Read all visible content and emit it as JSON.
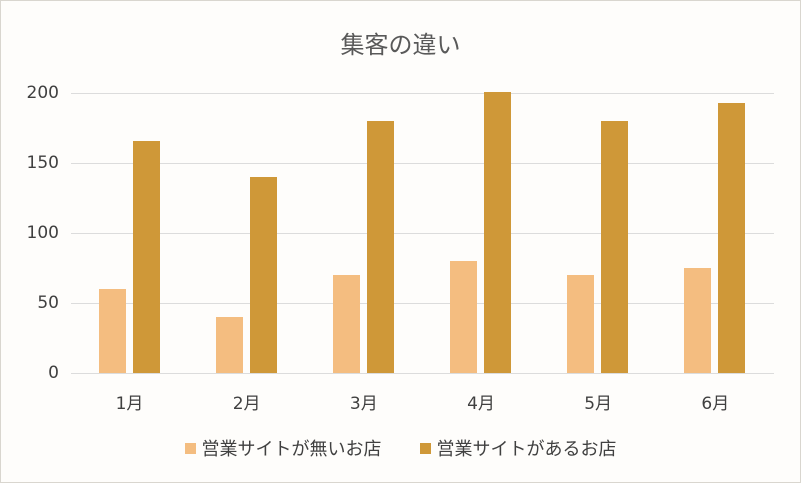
{
  "chart_data": {
    "type": "bar",
    "title": "集客の違い",
    "categories": [
      "1月",
      "2月",
      "3月",
      "4月",
      "5月",
      "6月"
    ],
    "series": [
      {
        "name": "営業サイトが無いお店",
        "color": "#f4bd80",
        "values": [
          60,
          40,
          70,
          80,
          70,
          75
        ]
      },
      {
        "name": "営業サイトがあるお店",
        "color": "#cf9838",
        "values": [
          166,
          140,
          180,
          201,
          180,
          193
        ]
      }
    ],
    "xlabel": "",
    "ylabel": "",
    "ylim": [
      0,
      200
    ],
    "yticks": [
      0,
      50,
      100,
      150,
      200
    ],
    "grid": true,
    "legend_position": "bottom"
  }
}
